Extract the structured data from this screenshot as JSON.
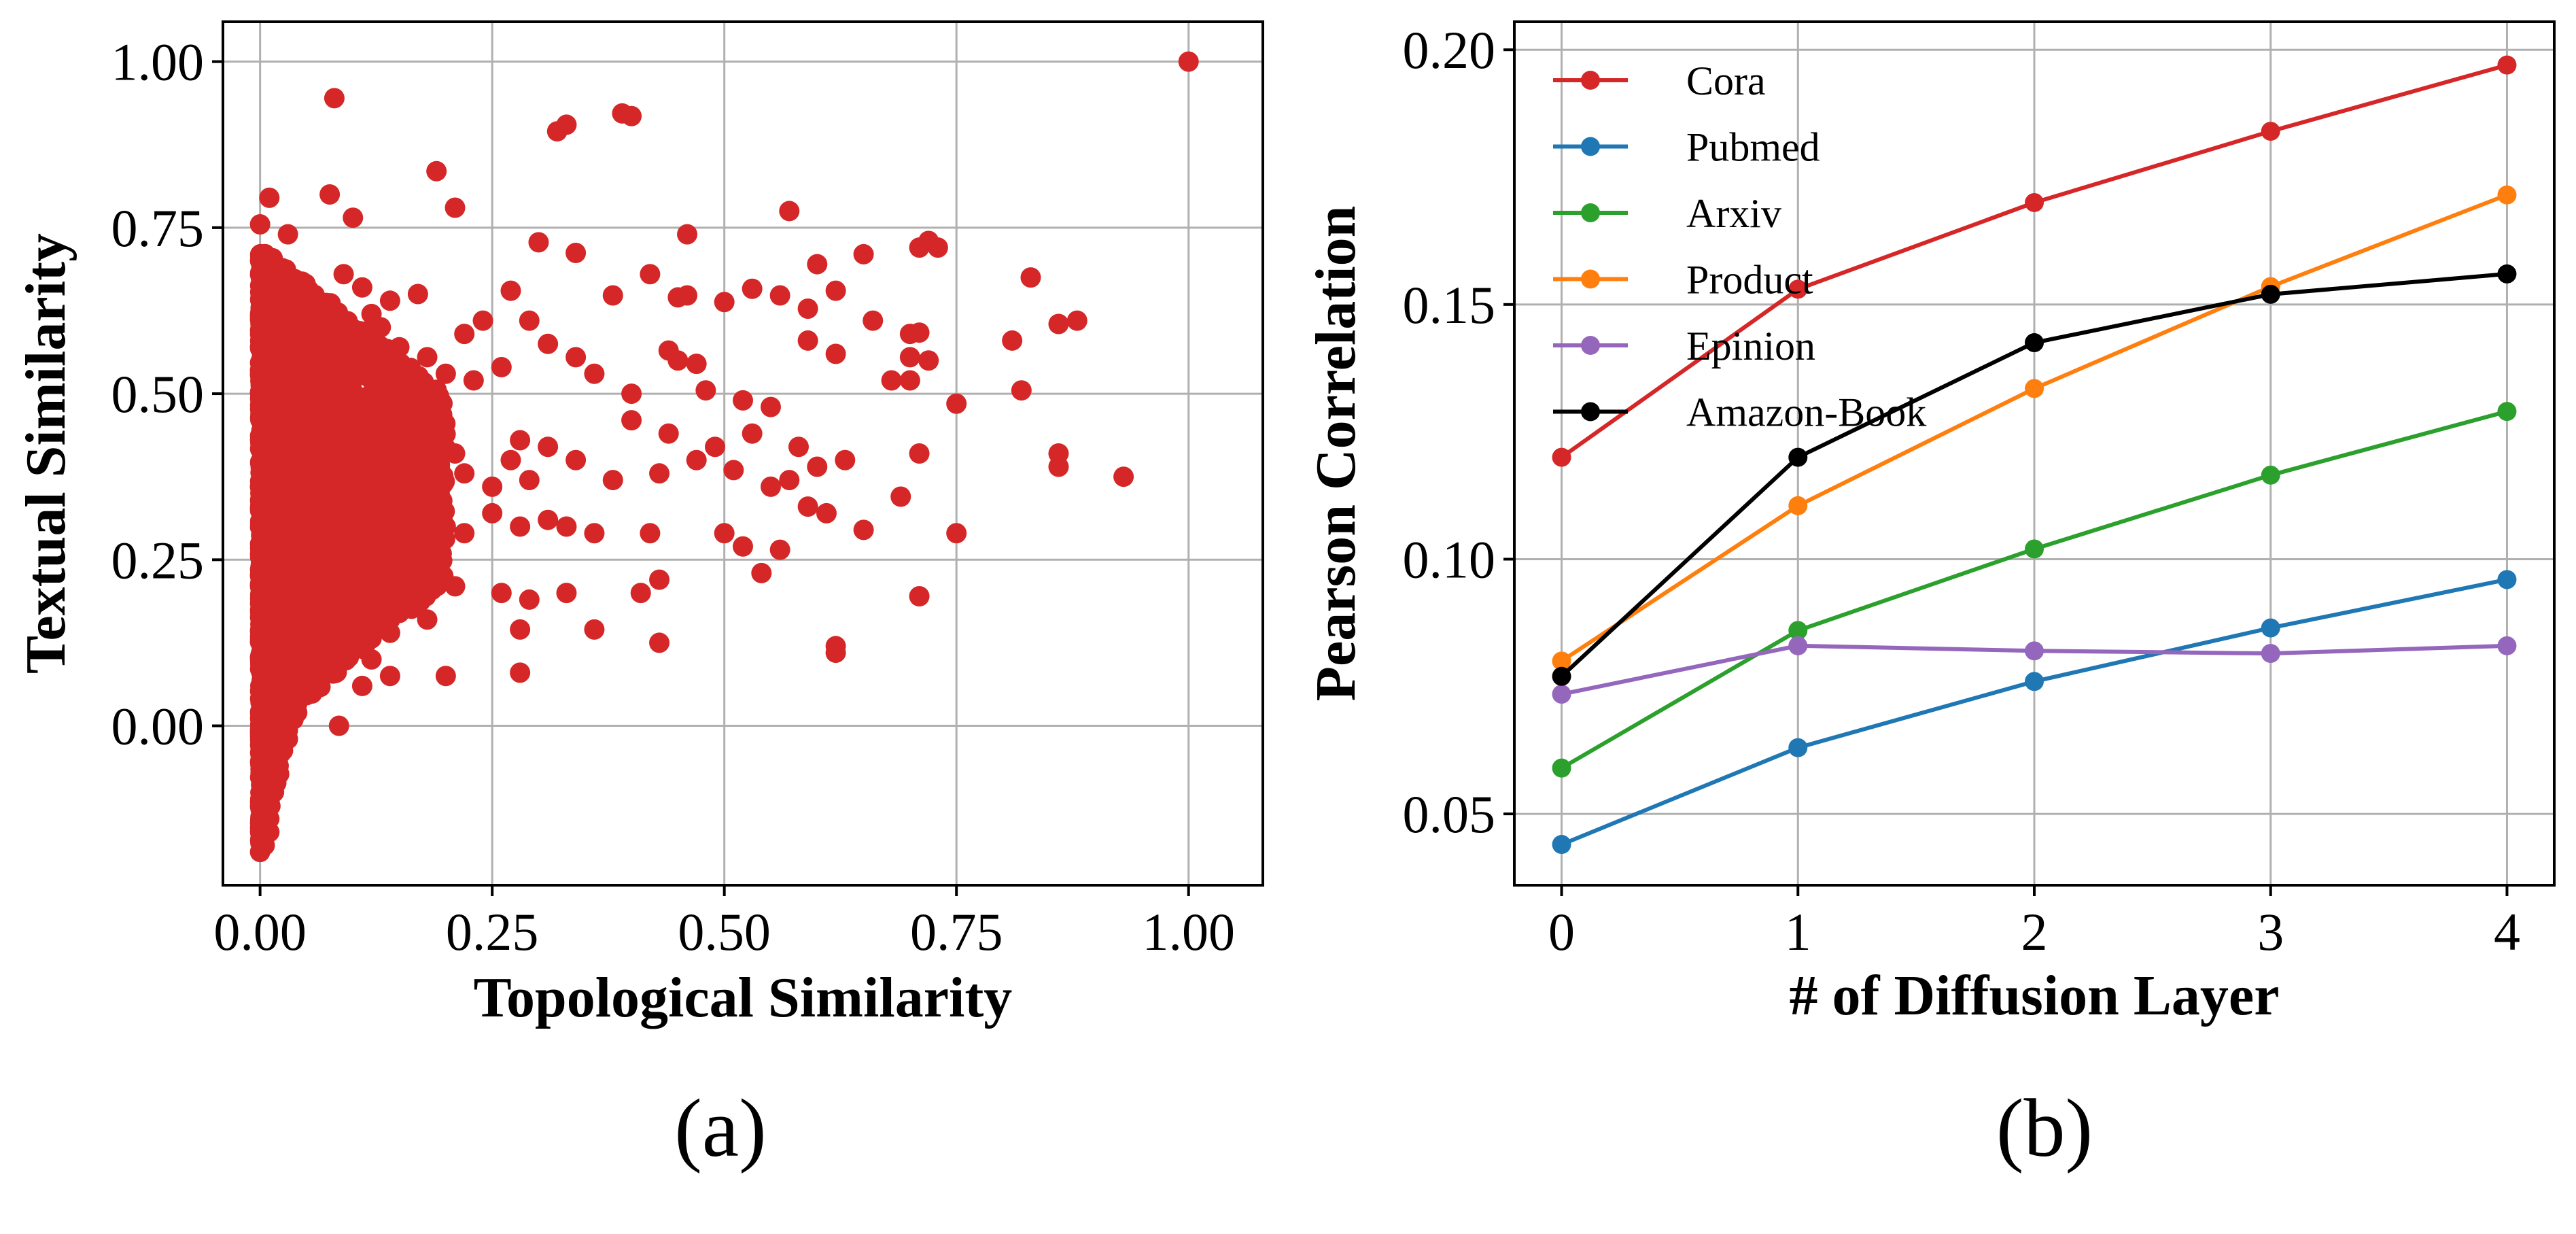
{
  "chart_data": [
    {
      "type": "scatter",
      "caption": "(a)",
      "xlabel": "Topological Similarity",
      "ylabel": "Textual Similarity",
      "xlim": [
        -0.04,
        1.08
      ],
      "ylim": [
        -0.24,
        1.06
      ],
      "xticks": [
        "0.00",
        "0.25",
        "0.50",
        "0.75",
        "1.00"
      ],
      "yticks": [
        "0.00",
        "0.25",
        "0.50",
        "0.75",
        "1.00"
      ],
      "grid": true,
      "color": "#d62728",
      "points": [
        [
          1.0,
          1.0
        ],
        [
          0.08,
          0.945
        ],
        [
          0.32,
          0.895
        ],
        [
          0.33,
          0.905
        ],
        [
          0.39,
          0.922
        ],
        [
          0.4,
          0.918
        ],
        [
          0.19,
          0.835
        ],
        [
          0.075,
          0.8
        ],
        [
          0.21,
          0.78
        ],
        [
          0.57,
          0.775
        ],
        [
          0.1,
          0.765
        ],
        [
          0.01,
          0.795
        ],
        [
          0.0,
          0.755
        ],
        [
          0.03,
          0.74
        ],
        [
          0.46,
          0.74
        ],
        [
          0.3,
          0.728
        ],
        [
          0.34,
          0.712
        ],
        [
          0.71,
          0.72
        ],
        [
          0.72,
          0.73
        ],
        [
          0.73,
          0.72
        ],
        [
          0.65,
          0.71
        ],
        [
          0.6,
          0.695
        ],
        [
          0.42,
          0.68
        ],
        [
          0.83,
          0.675
        ],
        [
          0.27,
          0.655
        ],
        [
          0.38,
          0.648
        ],
        [
          0.45,
          0.645
        ],
        [
          0.46,
          0.648
        ],
        [
          0.53,
          0.658
        ],
        [
          0.5,
          0.638
        ],
        [
          0.56,
          0.648
        ],
        [
          0.62,
          0.655
        ],
        [
          0.59,
          0.628
        ],
        [
          0.66,
          0.61
        ],
        [
          0.7,
          0.59
        ],
        [
          0.71,
          0.592
        ],
        [
          0.81,
          0.58
        ],
        [
          0.86,
          0.605
        ],
        [
          0.88,
          0.61
        ],
        [
          0.59,
          0.58
        ],
        [
          0.62,
          0.56
        ],
        [
          0.7,
          0.555
        ],
        [
          0.72,
          0.55
        ],
        [
          0.68,
          0.52
        ],
        [
          0.7,
          0.52
        ],
        [
          0.82,
          0.505
        ],
        [
          0.75,
          0.485
        ],
        [
          0.55,
          0.48
        ],
        [
          0.52,
          0.49
        ],
        [
          0.48,
          0.505
        ],
        [
          0.45,
          0.55
        ],
        [
          0.44,
          0.565
        ],
        [
          0.47,
          0.545
        ],
        [
          0.4,
          0.5
        ],
        [
          0.36,
          0.53
        ],
        [
          0.34,
          0.555
        ],
        [
          0.31,
          0.575
        ],
        [
          0.29,
          0.61
        ],
        [
          0.24,
          0.61
        ],
        [
          0.22,
          0.59
        ],
        [
          0.26,
          0.54
        ],
        [
          0.23,
          0.52
        ],
        [
          0.2,
          0.53
        ],
        [
          0.18,
          0.555
        ],
        [
          0.15,
          0.57
        ],
        [
          0.13,
          0.6
        ],
        [
          0.12,
          0.62
        ],
        [
          0.14,
          0.64
        ],
        [
          0.17,
          0.65
        ],
        [
          0.11,
          0.66
        ],
        [
          0.09,
          0.68
        ],
        [
          0.4,
          0.46
        ],
        [
          0.44,
          0.44
        ],
        [
          0.49,
          0.42
        ],
        [
          0.53,
          0.44
        ],
        [
          0.58,
          0.42
        ],
        [
          0.6,
          0.39
        ],
        [
          0.63,
          0.4
        ],
        [
          0.71,
          0.41
        ],
        [
          0.57,
          0.37
        ],
        [
          0.59,
          0.33
        ],
        [
          0.61,
          0.32
        ],
        [
          0.55,
          0.36
        ],
        [
          0.51,
          0.385
        ],
        [
          0.47,
          0.4
        ],
        [
          0.43,
          0.38
        ],
        [
          0.38,
          0.37
        ],
        [
          0.34,
          0.4
        ],
        [
          0.31,
          0.42
        ],
        [
          0.28,
          0.43
        ],
        [
          0.27,
          0.4
        ],
        [
          0.29,
          0.37
        ],
        [
          0.25,
          0.36
        ],
        [
          0.22,
          0.38
        ],
        [
          0.21,
          0.41
        ],
        [
          0.19,
          0.43
        ],
        [
          0.17,
          0.45
        ],
        [
          0.16,
          0.48
        ],
        [
          0.86,
          0.41
        ],
        [
          0.86,
          0.39
        ],
        [
          0.93,
          0.375
        ],
        [
          0.69,
          0.345
        ],
        [
          0.65,
          0.295
        ],
        [
          0.75,
          0.29
        ],
        [
          0.56,
          0.265
        ],
        [
          0.54,
          0.23
        ],
        [
          0.5,
          0.29
        ],
        [
          0.52,
          0.27
        ],
        [
          0.42,
          0.29
        ],
        [
          0.36,
          0.29
        ],
        [
          0.33,
          0.3
        ],
        [
          0.31,
          0.31
        ],
        [
          0.28,
          0.3
        ],
        [
          0.25,
          0.32
        ],
        [
          0.22,
          0.29
        ],
        [
          0.2,
          0.3
        ],
        [
          0.18,
          0.27
        ],
        [
          0.16,
          0.25
        ],
        [
          0.14,
          0.28
        ],
        [
          0.12,
          0.3
        ],
        [
          0.43,
          0.22
        ],
        [
          0.41,
          0.2
        ],
        [
          0.33,
          0.2
        ],
        [
          0.29,
          0.19
        ],
        [
          0.26,
          0.2
        ],
        [
          0.21,
          0.21
        ],
        [
          0.19,
          0.24
        ],
        [
          0.17,
          0.2
        ],
        [
          0.15,
          0.17
        ],
        [
          0.13,
          0.19
        ],
        [
          0.11,
          0.21
        ],
        [
          0.36,
          0.145
        ],
        [
          0.43,
          0.125
        ],
        [
          0.28,
          0.145
        ],
        [
          0.71,
          0.195
        ],
        [
          0.62,
          0.12
        ],
        [
          0.62,
          0.11
        ],
        [
          0.18,
          0.16
        ],
        [
          0.14,
          0.14
        ],
        [
          0.12,
          0.1
        ],
        [
          0.1,
          0.13
        ],
        [
          0.28,
          0.08
        ],
        [
          0.2,
          0.075
        ],
        [
          0.14,
          0.075
        ],
        [
          0.11,
          0.06
        ],
        [
          0.085,
          0.0
        ],
        [
          0.09,
          0.1
        ],
        [
          0.06,
          0.12
        ],
        [
          0.05,
          0.05
        ],
        [
          0.04,
          0.02
        ],
        [
          0.03,
          -0.02
        ],
        [
          0.02,
          -0.06
        ],
        [
          0.015,
          -0.1
        ],
        [
          0.01,
          -0.14
        ],
        [
          0.005,
          -0.18
        ],
        [
          0.0,
          -0.19
        ],
        [
          0.01,
          -0.16
        ]
      ]
    },
    {
      "type": "line",
      "caption": "(b)",
      "xlabel": "# of Diffusion Layer",
      "ylabel": "Pearson Correlation",
      "x": [
        0,
        1,
        2,
        3,
        4
      ],
      "xlim": [
        -0.2,
        4.2
      ],
      "ylim": [
        0.036,
        0.2055
      ],
      "xticks": [
        "0",
        "1",
        "2",
        "3",
        "4"
      ],
      "yticks": [
        "0.05",
        "0.10",
        "0.15",
        "0.20"
      ],
      "grid": true,
      "legend": "upper-left",
      "series": [
        {
          "name": "Cora",
          "color": "#d62728",
          "values": [
            0.12,
            0.153,
            0.17,
            0.184,
            0.197
          ]
        },
        {
          "name": "Pubmed",
          "color": "#1f77b4",
          "values": [
            0.044,
            0.063,
            0.076,
            0.0865,
            0.096
          ]
        },
        {
          "name": "Arxiv",
          "color": "#2ca02c",
          "values": [
            0.059,
            0.086,
            0.102,
            0.1165,
            0.129
          ]
        },
        {
          "name": "Product",
          "color": "#ff7f0e",
          "values": [
            0.08,
            0.1105,
            0.1335,
            0.1535,
            0.1715
          ]
        },
        {
          "name": "Epinion",
          "color": "#9467bd",
          "values": [
            0.0735,
            0.083,
            0.082,
            0.0815,
            0.083
          ]
        },
        {
          "name": "Amazon-Book",
          "color": "#000000",
          "values": [
            0.077,
            0.12,
            0.1425,
            0.152,
            0.156
          ]
        }
      ]
    }
  ]
}
